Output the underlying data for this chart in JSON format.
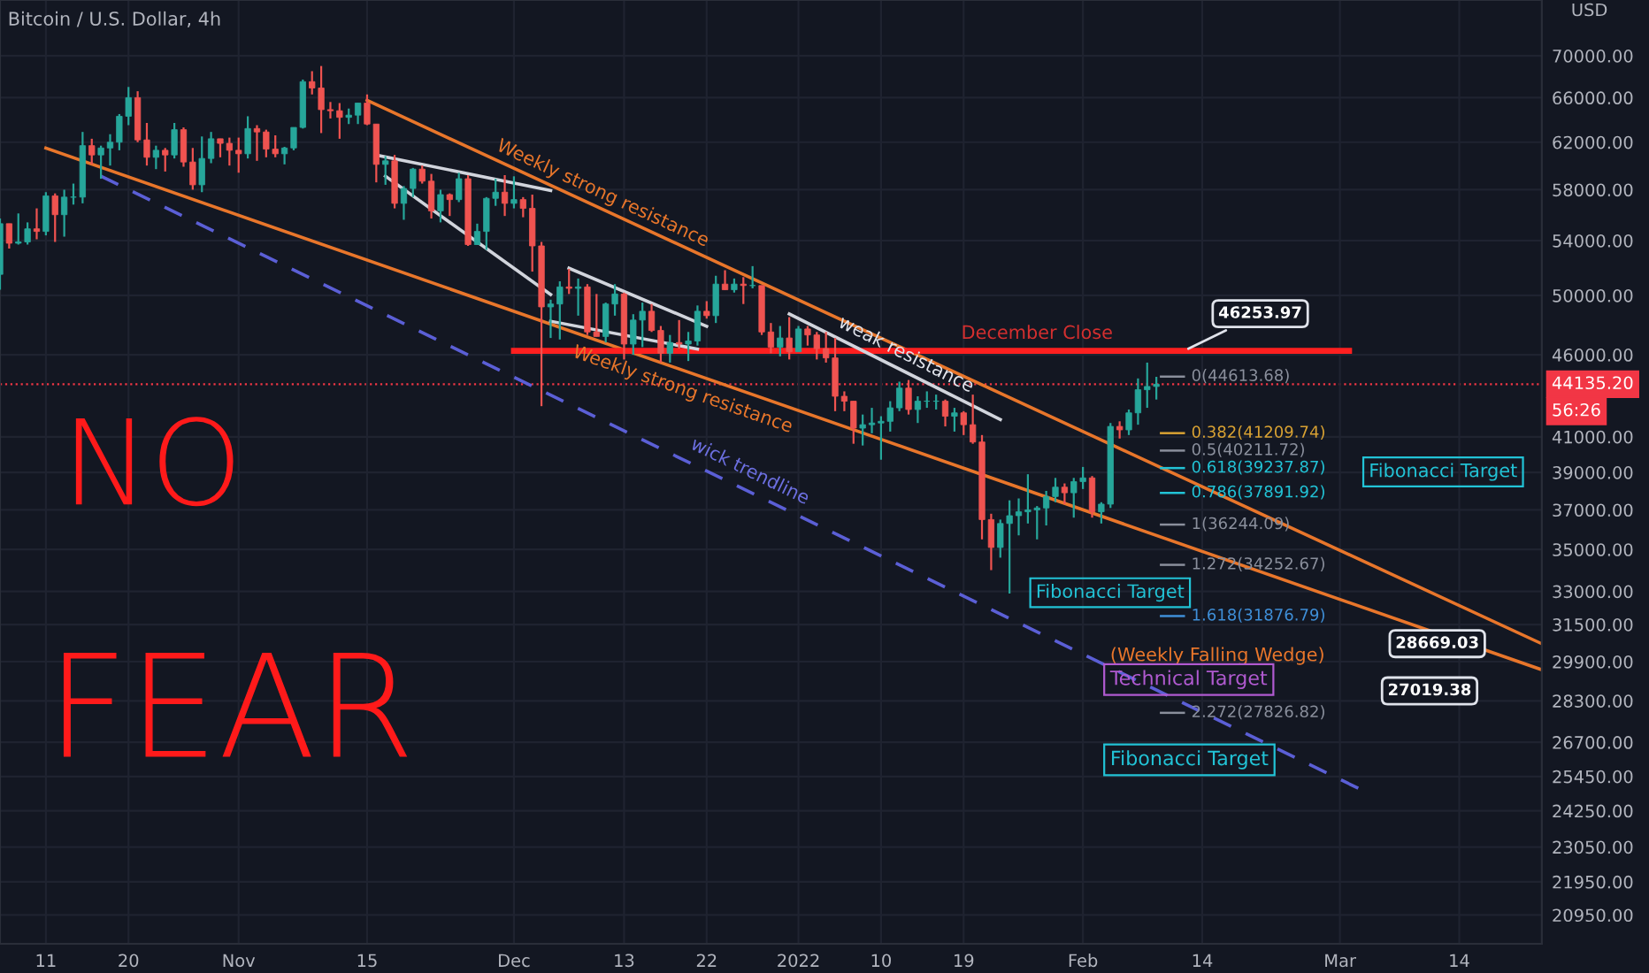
{
  "chart_data": {
    "type": "candlestick",
    "title": "Bitcoin / U.S. Dollar, 4h",
    "x": [
      "2021-10-06",
      "2021-10-07",
      "2021-10-08",
      "2021-10-09",
      "2021-10-10",
      "2021-10-11",
      "2021-10-12",
      "2021-10-13",
      "2021-10-14",
      "2021-10-15",
      "2021-10-16",
      "2021-10-17",
      "2021-10-18",
      "2021-10-19",
      "2021-10-20",
      "2021-10-21",
      "2021-10-22",
      "2021-10-23",
      "2021-10-24",
      "2021-10-25",
      "2021-10-26",
      "2021-10-27",
      "2021-10-28",
      "2021-10-29",
      "2021-10-30",
      "2021-10-31",
      "2021-11-01",
      "2021-11-02",
      "2021-11-03",
      "2021-11-04",
      "2021-11-05",
      "2021-11-06",
      "2021-11-07",
      "2021-11-08",
      "2021-11-09",
      "2021-11-10",
      "2021-11-11",
      "2021-11-12",
      "2021-11-13",
      "2021-11-14",
      "2021-11-15",
      "2021-11-16",
      "2021-11-17",
      "2021-11-18",
      "2021-11-19",
      "2021-11-20",
      "2021-11-21",
      "2021-11-22",
      "2021-11-23",
      "2021-11-24",
      "2021-11-25",
      "2021-11-26",
      "2021-11-27",
      "2021-11-28",
      "2021-11-29",
      "2021-11-30",
      "2021-12-01",
      "2021-12-02",
      "2021-12-03",
      "2021-12-04",
      "2021-12-05",
      "2021-12-06",
      "2021-12-07",
      "2021-12-08",
      "2021-12-09",
      "2021-12-10",
      "2021-12-11",
      "2021-12-12",
      "2021-12-13",
      "2021-12-14",
      "2021-12-15",
      "2021-12-16",
      "2021-12-17",
      "2021-12-18",
      "2021-12-19",
      "2021-12-20",
      "2021-12-21",
      "2021-12-22",
      "2021-12-23",
      "2021-12-24",
      "2021-12-25",
      "2021-12-26",
      "2021-12-27",
      "2021-12-28",
      "2021-12-29",
      "2021-12-30",
      "2021-12-31",
      "2022-01-01",
      "2022-01-02",
      "2022-01-03",
      "2022-01-04",
      "2022-01-05",
      "2022-01-06",
      "2022-01-07",
      "2022-01-08",
      "2022-01-09",
      "2022-01-10",
      "2022-01-11",
      "2022-01-12",
      "2022-01-13",
      "2022-01-14",
      "2022-01-15",
      "2022-01-16",
      "2022-01-17",
      "2022-01-18",
      "2022-01-19",
      "2022-01-20",
      "2022-01-21",
      "2022-01-22",
      "2022-01-23",
      "2022-01-24",
      "2022-01-25",
      "2022-01-26",
      "2022-01-27",
      "2022-01-28",
      "2022-01-29",
      "2022-01-30",
      "2022-01-31",
      "2022-02-01",
      "2022-02-02",
      "2022-02-03",
      "2022-02-04",
      "2022-02-05",
      "2022-02-06",
      "2022-02-07",
      "2022-02-08",
      "2022-02-09"
    ],
    "ohlc": [
      [
        51500,
        55700,
        50400,
        55300
      ],
      [
        55300,
        55300,
        53400,
        53800
      ],
      [
        53800,
        56100,
        53700,
        53900
      ],
      [
        53900,
        55400,
        53700,
        54900
      ],
      [
        54900,
        56500,
        54100,
        54700
      ],
      [
        54700,
        57800,
        54400,
        57500
      ],
      [
        57500,
        57700,
        53900,
        56000
      ],
      [
        56000,
        58000,
        54300,
        57400
      ],
      [
        57400,
        58500,
        56800,
        57400
      ],
      [
        57400,
        62900,
        56900,
        61700
      ],
      [
        61700,
        62300,
        60100,
        60900
      ],
      [
        60900,
        61700,
        58900,
        61500
      ],
      [
        61500,
        62700,
        60000,
        62000
      ],
      [
        62000,
        64500,
        61300,
        64300
      ],
      [
        64300,
        67000,
        63500,
        66000
      ],
      [
        66000,
        66600,
        62000,
        62200
      ],
      [
        62200,
        63700,
        60000,
        60700
      ],
      [
        60700,
        61700,
        59700,
        61300
      ],
      [
        61300,
        61500,
        59500,
        60900
      ],
      [
        60900,
        63700,
        60600,
        63100
      ],
      [
        63100,
        63300,
        59900,
        60300
      ],
      [
        60300,
        61500,
        58000,
        58400
      ],
      [
        58400,
        62500,
        57800,
        60600
      ],
      [
        60600,
        62900,
        60200,
        62300
      ],
      [
        62300,
        62300,
        60700,
        61900
      ],
      [
        61900,
        62400,
        60000,
        61300
      ],
      [
        61300,
        62400,
        59400,
        61000
      ],
      [
        61000,
        64300,
        60600,
        63200
      ],
      [
        63200,
        63500,
        60400,
        62900
      ],
      [
        62900,
        63100,
        60700,
        61400
      ],
      [
        61400,
        62600,
        60700,
        61000
      ],
      [
        61000,
        61600,
        60100,
        61500
      ],
      [
        61500,
        63300,
        61300,
        63300
      ],
      [
        63300,
        67700,
        63200,
        67500
      ],
      [
        67500,
        68500,
        66300,
        66900
      ],
      [
        66900,
        69000,
        62800,
        64900
      ],
      [
        64900,
        65600,
        64100,
        64800
      ],
      [
        64800,
        65500,
        62300,
        64200
      ],
      [
        64200,
        65000,
        63600,
        64400
      ],
      [
        64400,
        65500,
        63600,
        65500
      ],
      [
        65500,
        66300,
        63500,
        63600
      ],
      [
        63600,
        63600,
        58600,
        60100
      ],
      [
        60100,
        60800,
        58400,
        60400
      ],
      [
        60400,
        60900,
        56500,
        56900
      ],
      [
        56900,
        58300,
        55600,
        58100
      ],
      [
        58100,
        59800,
        57400,
        59700
      ],
      [
        59700,
        60000,
        58500,
        58700
      ],
      [
        58700,
        59300,
        55700,
        56300
      ],
      [
        56300,
        58000,
        55400,
        57600
      ],
      [
        57600,
        57700,
        55900,
        57200
      ],
      [
        57200,
        59400,
        57000,
        58900
      ],
      [
        58900,
        59200,
        53600,
        53700
      ],
      [
        53700,
        55300,
        53700,
        54700
      ],
      [
        54700,
        57400,
        53300,
        57300
      ],
      [
        57300,
        58900,
        56700,
        57800
      ],
      [
        57800,
        59200,
        55900,
        56900
      ],
      [
        56900,
        59100,
        56500,
        57200
      ],
      [
        57200,
        57400,
        55800,
        56500
      ],
      [
        56500,
        57600,
        51700,
        53600
      ],
      [
        53600,
        53900,
        42800,
        49200
      ],
      [
        49200,
        49700,
        47100,
        49400
      ],
      [
        49400,
        51000,
        47000,
        50600
      ],
      [
        50600,
        51900,
        50100,
        50500
      ],
      [
        50500,
        51200,
        48600,
        50600
      ],
      [
        50600,
        50800,
        47300,
        47500
      ],
      [
        47500,
        50100,
        47200,
        47200
      ],
      [
        47200,
        49500,
        46800,
        49400
      ],
      [
        49400,
        50800,
        48600,
        50100
      ],
      [
        50100,
        50200,
        45700,
        46700
      ],
      [
        46700,
        48700,
        46000,
        48300
      ],
      [
        48300,
        49500,
        46500,
        48900
      ],
      [
        48900,
        49400,
        47500,
        47600
      ],
      [
        47600,
        47900,
        45500,
        46100
      ],
      [
        46100,
        47300,
        45500,
        46800
      ],
      [
        46800,
        48300,
        46400,
        46700
      ],
      [
        46700,
        47500,
        45600,
        46900
      ],
      [
        46900,
        49300,
        46600,
        48900
      ],
      [
        48900,
        49600,
        48400,
        48600
      ],
      [
        48600,
        51400,
        48100,
        50800
      ],
      [
        50800,
        51800,
        50400,
        50400
      ],
      [
        50400,
        51200,
        50200,
        50800
      ],
      [
        50800,
        51300,
        49400,
        50700
      ],
      [
        50700,
        52100,
        50500,
        50700
      ],
      [
        50700,
        50700,
        47300,
        47500
      ],
      [
        47500,
        48100,
        46100,
        46500
      ],
      [
        46500,
        47900,
        45900,
        47100
      ],
      [
        47100,
        48500,
        45700,
        46200
      ],
      [
        46200,
        47900,
        46200,
        47700
      ],
      [
        47700,
        47900,
        46600,
        47300
      ],
      [
        47300,
        47500,
        45700,
        46400
      ],
      [
        46400,
        47500,
        45500,
        45800
      ],
      [
        45800,
        47100,
        42500,
        43400
      ],
      [
        43400,
        43700,
        42500,
        43100
      ],
      [
        43100,
        43100,
        40600,
        41500
      ],
      [
        41500,
        42300,
        40500,
        41700
      ],
      [
        41700,
        42700,
        41200,
        41800
      ],
      [
        41800,
        42200,
        39700,
        41900
      ],
      [
        41900,
        43100,
        41300,
        42700
      ],
      [
        42700,
        44300,
        42500,
        43900
      ],
      [
        43900,
        44400,
        42300,
        42600
      ],
      [
        42600,
        43400,
        41800,
        43100
      ],
      [
        43100,
        43700,
        42700,
        43100
      ],
      [
        43100,
        43500,
        42600,
        43100
      ],
      [
        43100,
        43200,
        41600,
        42200
      ],
      [
        42200,
        42700,
        41300,
        42400
      ],
      [
        42400,
        42500,
        41100,
        41700
      ],
      [
        41700,
        43500,
        40600,
        40700
      ],
      [
        40700,
        41100,
        35500,
        36500
      ],
      [
        36500,
        36800,
        34000,
        35100
      ],
      [
        35100,
        36500,
        34600,
        36300
      ],
      [
        36300,
        37500,
        32900,
        36700
      ],
      [
        36700,
        37600,
        35700,
        36900
      ],
      [
        36900,
        38900,
        36300,
        37000
      ],
      [
        37000,
        37200,
        35500,
        37100
      ],
      [
        37100,
        38000,
        36200,
        37700
      ],
      [
        37700,
        38700,
        37400,
        38200
      ],
      [
        38200,
        38400,
        37300,
        37900
      ],
      [
        37900,
        38700,
        36600,
        38500
      ],
      [
        38500,
        39300,
        38100,
        38700
      ],
      [
        38700,
        38800,
        36600,
        36900
      ],
      [
        36900,
        37400,
        36300,
        37300
      ],
      [
        37300,
        41800,
        37100,
        41600
      ],
      [
        41600,
        41900,
        40900,
        41400
      ],
      [
        41400,
        42600,
        41100,
        42400
      ],
      [
        42400,
        44500,
        41700,
        43800
      ],
      [
        43800,
        45500,
        42700,
        44000
      ],
      [
        44000,
        44600,
        43200,
        44135.2
      ]
    ],
    "series": [
      {
        "type": "line",
        "x": [
          "2021-11-15",
          "2022-03-23"
        ],
        "values": [
          65750,
          30660
        ],
        "color": "#e8762b",
        "line_style": "solid"
      },
      {
        "type": "line",
        "x": [
          "2021-10-11",
          "2022-03-23"
        ],
        "values": [
          61490,
          29560
        ],
        "color": "#e8762b",
        "line_style": "solid"
      },
      {
        "type": "line",
        "x": [
          "2021-12-01",
          "2022-03-02"
        ],
        "values": [
          46253.97,
          46253.97
        ],
        "color": "#ff1f1f",
        "line_style": "solid"
      },
      {
        "type": "line",
        "x": [
          "2021-10-17",
          "2022-03-03"
        ],
        "values": [
          59110,
          25030
        ],
        "color": "#5b5fd6",
        "line_style": "dashed"
      },
      {
        "type": "line",
        "x": [
          "2021-12-31",
          "2022-01-23"
        ],
        "values": [
          48720,
          42000
        ],
        "color": "#d1d4dc",
        "line_style": "solid"
      },
      {
        "type": "line",
        "x": [
          "2021-11-16",
          "2021-12-05"
        ],
        "values": [
          60890,
          57940
        ],
        "color": "#d1d4dc",
        "line_style": "solid"
      },
      {
        "type": "line",
        "x": [
          "2021-11-17",
          "2021-12-05"
        ],
        "values": [
          59110,
          50060
        ],
        "color": "#d1d4dc",
        "line_style": "solid"
      },
      {
        "type": "line",
        "x": [
          "2021-12-07",
          "2021-12-22"
        ],
        "values": [
          51950,
          47880
        ],
        "color": "#d1d4dc",
        "line_style": "solid"
      },
      {
        "type": "line",
        "x": [
          "2021-12-05",
          "2021-12-21"
        ],
        "values": [
          48220,
          46370
        ],
        "color": "#d1d4dc",
        "line_style": "solid"
      },
      {
        "type": "line",
        "x": [
          "2022-02-09T12:00",
          "2022-02-12"
        ],
        "values": [
          44613.68,
          44613.68
        ],
        "color": "#8a8f9c",
        "line_style": "solid"
      },
      {
        "type": "line",
        "x": [
          "2022-02-09T12:00",
          "2022-02-12"
        ],
        "values": [
          41209.74,
          41209.74
        ],
        "color": "#d9a233",
        "line_style": "solid"
      },
      {
        "type": "line",
        "x": [
          "2022-02-09T12:00",
          "2022-02-12"
        ],
        "values": [
          40211.72,
          40211.72
        ],
        "color": "#8a8f9c",
        "line_style": "solid"
      },
      {
        "type": "line",
        "x": [
          "2022-02-09T12:00",
          "2022-02-12"
        ],
        "values": [
          39237.87,
          39237.87
        ],
        "color": "#22c3d6",
        "line_style": "solid"
      },
      {
        "type": "line",
        "x": [
          "2022-02-09T12:00",
          "2022-02-12"
        ],
        "values": [
          37891.92,
          37891.92
        ],
        "color": "#22c3d6",
        "line_style": "solid"
      },
      {
        "type": "line",
        "x": [
          "2022-02-09T12:00",
          "2022-02-12"
        ],
        "values": [
          36244.09,
          36244.09
        ],
        "color": "#8a8f9c",
        "line_style": "solid"
      },
      {
        "type": "line",
        "x": [
          "2022-02-09T12:00",
          "2022-02-12"
        ],
        "values": [
          34252.67,
          34252.67
        ],
        "color": "#8a8f9c",
        "line_style": "solid"
      },
      {
        "type": "line",
        "x": [
          "2022-02-09T12:00",
          "2022-02-12"
        ],
        "values": [
          31876.79,
          31876.79
        ],
        "color": "#3f8fd8",
        "line_style": "solid"
      },
      {
        "type": "line",
        "x": [
          "2022-02-09T12:00",
          "2022-02-12"
        ],
        "values": [
          27826.82,
          27826.82
        ],
        "color": "#8a8f9c",
        "line_style": "solid"
      }
    ],
    "xlim": [
      "2021-10-06",
      "2022-03-23"
    ],
    "ylim": [
      20120,
      75700
    ],
    "log": true,
    "grid": true,
    "xticks": [
      {
        "value": "2021-10-11",
        "label": "11"
      },
      {
        "value": "2021-10-20",
        "label": "20"
      },
      {
        "value": "2021-11-01",
        "label": "Nov"
      },
      {
        "value": "2021-11-15",
        "label": "15"
      },
      {
        "value": "2021-12-01",
        "label": "Dec"
      },
      {
        "value": "2021-12-13",
        "label": "13"
      },
      {
        "value": "2021-12-22",
        "label": "22"
      },
      {
        "value": "2022-01-01",
        "label": "2022"
      },
      {
        "value": "2022-01-10",
        "label": "10"
      },
      {
        "value": "2022-01-19",
        "label": "19"
      },
      {
        "value": "2022-02-01",
        "label": "Feb"
      },
      {
        "value": "2022-02-14",
        "label": "14"
      },
      {
        "value": "2022-03-01",
        "label": "Mar"
      },
      {
        "value": "2022-03-14",
        "label": "14"
      }
    ],
    "yticks": [
      {
        "value": 70000,
        "label": "70000.00"
      },
      {
        "value": 66000,
        "label": "66000.00"
      },
      {
        "value": 62000,
        "label": "62000.00"
      },
      {
        "value": 58000,
        "label": "58000.00"
      },
      {
        "value": 54000,
        "label": "54000.00"
      },
      {
        "value": 50000,
        "label": "50000.00"
      },
      {
        "value": 46000,
        "label": "46000.00"
      },
      {
        "value": 41000,
        "label": "41000.00"
      },
      {
        "value": 39000,
        "label": "39000.00"
      },
      {
        "value": 37000,
        "label": "37000.00"
      },
      {
        "value": 35000,
        "label": "35000.00"
      },
      {
        "value": 33000,
        "label": "33000.00"
      },
      {
        "value": 31500,
        "label": "31500.00"
      },
      {
        "value": 29900,
        "label": "29900.00"
      },
      {
        "value": 28300,
        "label": "28300.00"
      },
      {
        "value": 26700,
        "label": "26700.00"
      },
      {
        "value": 25450,
        "label": "25450.00"
      },
      {
        "value": 24250,
        "label": "24250.00"
      },
      {
        "value": 23050,
        "label": "23050.00"
      },
      {
        "value": 21950,
        "label": "21950.00"
      },
      {
        "value": 20950,
        "label": "20950.00"
      }
    ],
    "ref_lines": [
      {
        "axis": "y",
        "value": 44135.2,
        "label": "44135.20",
        "color": "#f23645",
        "line_style": "dotted"
      }
    ],
    "annotations": [
      {
        "text": "Weekly strong resistance",
        "x": "2021-12-10",
        "y": 56600
      },
      {
        "text": "Weekly strong resistance",
        "x": "2021-12-20",
        "y": 44800
      },
      {
        "text": "weak resistance",
        "x": "2022-01-12",
        "y": 45150
      },
      {
        "text": "December Close",
        "x": "2022-01-27",
        "y": 46253.97
      },
      {
        "text": "wick trendline",
        "x": "2021-12-26",
        "y": 38310
      },
      {
        "text": "0(44613.68)",
        "x": "2022-02-12",
        "y": 44613.68
      },
      {
        "text": "0.382(41209.74)",
        "x": "2022-02-12",
        "y": 41209.74
      },
      {
        "text": "0.5(40211.72)",
        "x": "2022-02-12",
        "y": 40211.72
      },
      {
        "text": "0.618(39237.87)",
        "x": "2022-02-12",
        "y": 39237.87
      },
      {
        "text": "0.786(37891.92)",
        "x": "2022-02-12",
        "y": 37891.92
      },
      {
        "text": "1(36244.09)",
        "x": "2022-02-12",
        "y": 36244.09
      },
      {
        "text": "1.272(34252.67)",
        "x": "2022-02-12",
        "y": 34252.67
      },
      {
        "text": "1.618(31876.79)",
        "x": "2022-02-12",
        "y": 31876.79
      },
      {
        "text": "2.272(27826.82)",
        "x": "2022-02-12",
        "y": 27826.82
      },
      "Fibonacci Target",
      "Fibonacci Target",
      "(Weekly Falling Wedge)",
      "Technical Target",
      "Fibonacci Target",
      {
        "text": "46253.97",
        "x": "2022-02-12",
        "y": 46253.97
      },
      "28669.03",
      "27019.38",
      "NO",
      "FEAR",
      "56:26",
      "USD"
    ]
  }
}
